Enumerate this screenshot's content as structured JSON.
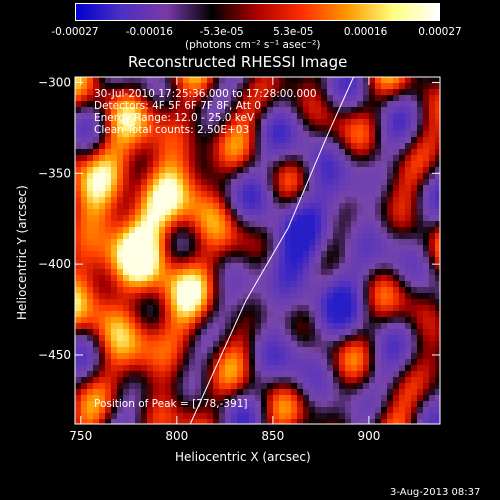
{
  "colorbar": {
    "ticks": [
      "-0.00027",
      "-0.00016",
      "-5.3e-05",
      "5.3e-05",
      "0.00016",
      "0.00027"
    ],
    "units": "(photons cm⁻² s⁻¹ asec⁻²)",
    "colors": [
      "#0000d0",
      "#4c30c0",
      "#7a3aa8",
      "#000000",
      "#b00000",
      "#ff3000",
      "#ff9a00",
      "#ffff80",
      "#ffffff"
    ]
  },
  "annotations": {
    "time": "30-Jul-2010 17:25:36.000 to 17:28:00.000",
    "detectors": "Detectors: 4F 5F 6F 7F 8F, Att 0",
    "energy": "Energy Range: 12.0 - 25.0 keV",
    "clean": "Clean    Total counts: 2.50E+03",
    "peak": "Position of Peak = [778,-391]"
  },
  "footer": {
    "date": "3-Aug-2013 08:37"
  },
  "chart_data": {
    "type": "heatmap",
    "title": "Reconstructed RHESSI Image",
    "xlabel": "Heliocentric X (arcsec)",
    "ylabel": "Heliocentric Y (arcsec)",
    "xlim": [
      747,
      937
    ],
    "ylim": [
      -488,
      -297
    ],
    "xticks": [
      750,
      800,
      850,
      900
    ],
    "yticks": [
      -300,
      -350,
      -400,
      -450
    ],
    "colorbar_range": [
      -0.00027,
      0.00027
    ],
    "peak": [
      778,
      -391
    ],
    "limb_curve": [
      [
        807,
        -488
      ],
      [
        836,
        -420
      ],
      [
        858,
        -380
      ],
      [
        878,
        -330
      ],
      [
        892,
        -297
      ]
    ]
  }
}
